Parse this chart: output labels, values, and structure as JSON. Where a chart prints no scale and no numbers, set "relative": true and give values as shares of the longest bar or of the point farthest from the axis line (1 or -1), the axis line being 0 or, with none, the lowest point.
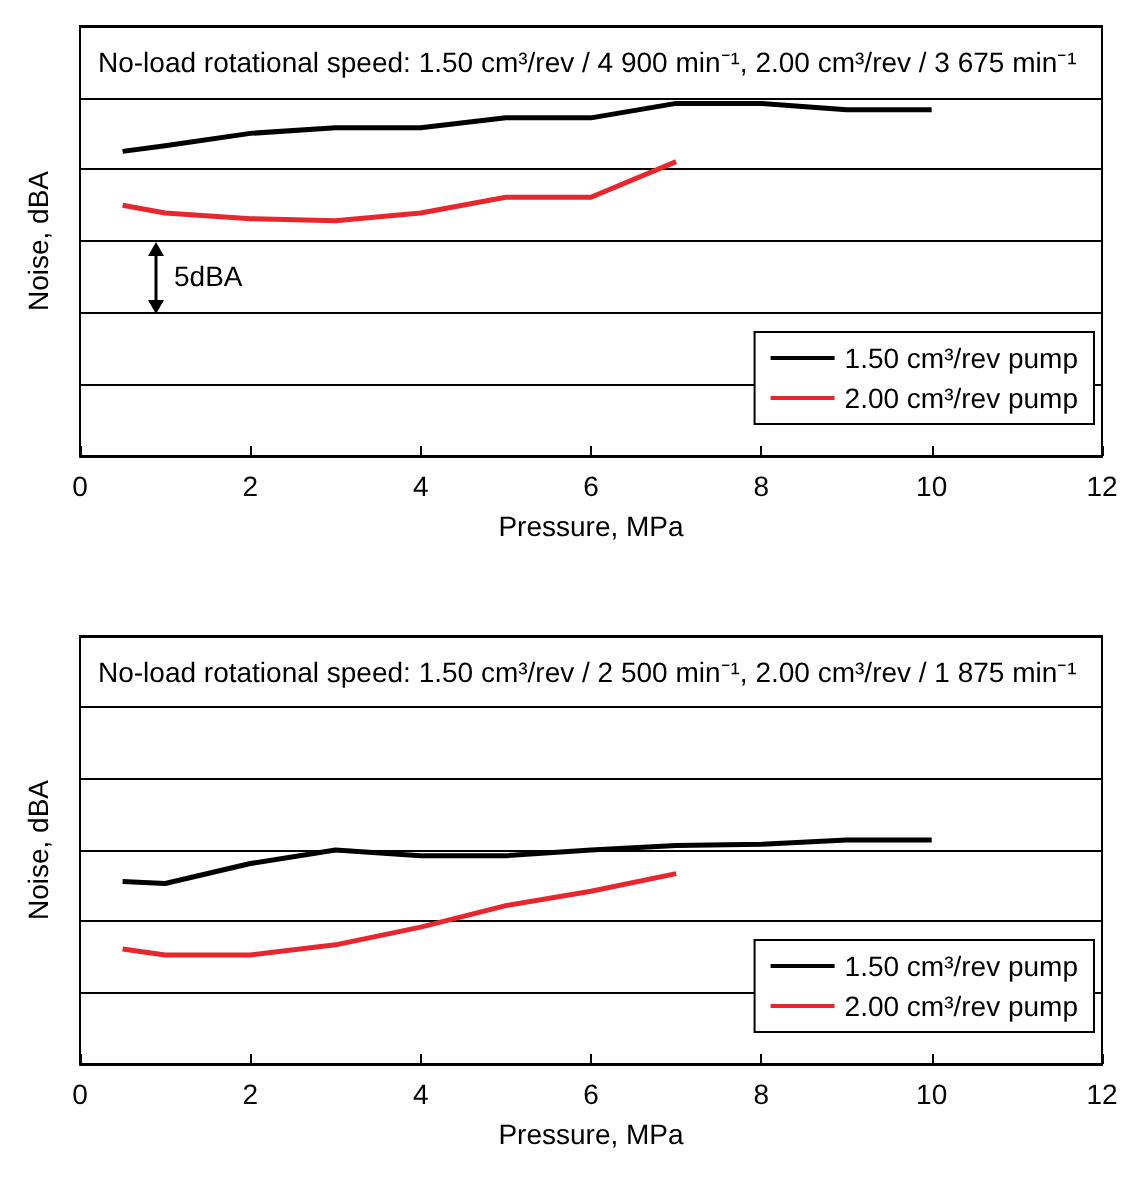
{
  "chart_data": [
    {
      "type": "line",
      "title": "No-load rotational speed: 1.50 cm³/rev / 4 900 min⁻¹, 2.00 cm³/rev / 3 675 min⁻¹",
      "xlabel": "Pressure, MPa",
      "ylabel": "Noise, dBA",
      "relative": true,
      "xlim": [
        0,
        12
      ],
      "xticks": [
        0,
        2,
        4,
        6,
        8,
        10,
        12
      ],
      "grid": "y",
      "legend": "bottom right",
      "marker": "none",
      "line_style": "solid",
      "annotations": [
        "5dBA"
      ],
      "series": [
        {
          "name": "1.50 cm³/rev pump",
          "color": "#000000",
          "x": [
            0.5,
            1,
            2,
            3,
            4,
            5,
            6,
            7,
            8,
            9,
            10
          ],
          "values": [
            0.864,
            0.88,
            0.915,
            0.931,
            0.931,
            0.959,
            0.959,
            1,
            1,
            0.982,
            0.982
          ]
        },
        {
          "name": "2.00 cm³/rev pump",
          "color": "#e8262d",
          "x": [
            0.5,
            1,
            2,
            3,
            4,
            5,
            6,
            7
          ],
          "values": [
            0.711,
            0.689,
            0.673,
            0.667,
            0.689,
            0.734,
            0.734,
            0.835
          ]
        }
      ]
    },
    {
      "type": "line",
      "title": "No-load rotational speed: 1.50 cm³/rev / 2 500 min⁻¹, 2.00 cm³/rev / 1 875 min⁻¹",
      "xlabel": "Pressure, MPa",
      "ylabel": "Noise, dBA",
      "relative": true,
      "xlim": [
        0,
        12
      ],
      "xticks": [
        0,
        2,
        4,
        6,
        8,
        10,
        12
      ],
      "grid": "y",
      "legend": "bottom right",
      "marker": "none",
      "line_style": "solid",
      "series": [
        {
          "name": "1.50 cm³/rev pump",
          "color": "#000000",
          "x": [
            0.5,
            1,
            2,
            3,
            4,
            5,
            6,
            7,
            8,
            9,
            10
          ],
          "values": [
            0.815,
            0.806,
            0.895,
            0.955,
            0.93,
            0.93,
            0.955,
            0.975,
            0.981,
            1,
            1
          ]
        },
        {
          "name": "2.00 cm³/rev pump",
          "color": "#e8262d",
          "x": [
            0.5,
            1,
            2,
            3,
            4,
            5,
            6,
            7
          ],
          "values": [
            0.513,
            0.487,
            0.487,
            0.532,
            0.611,
            0.707,
            0.771,
            0.85
          ]
        }
      ]
    }
  ]
}
